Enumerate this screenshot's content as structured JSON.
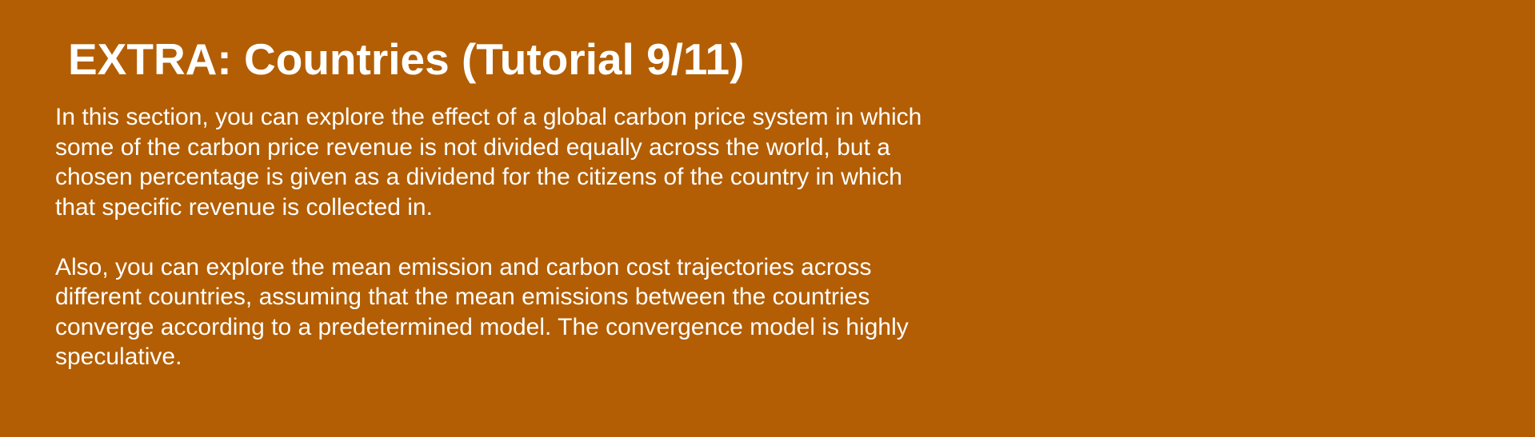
{
  "tutorial": {
    "title": "EXTRA: Countries (Tutorial 9/11)",
    "paragraph_1": {
      "lines": [
        "In this section, you can explore the effect of a global carbon price system in which",
        "some of the carbon price revenue is not divided equally across the world, but a",
        "chosen percentage is given as a dividend for the citizens of the country in which",
        "that specific revenue is collected in."
      ]
    },
    "paragraph_2": {
      "lines": [
        "Also, you can explore the mean emission and carbon cost trajectories across",
        "different countries, assuming that the mean emissions between the countries",
        "converge according to a predetermined model. The convergence model is highly",
        "speculative."
      ]
    },
    "colors": {
      "background": "#B35E04",
      "text": "#FFFFFF"
    }
  }
}
